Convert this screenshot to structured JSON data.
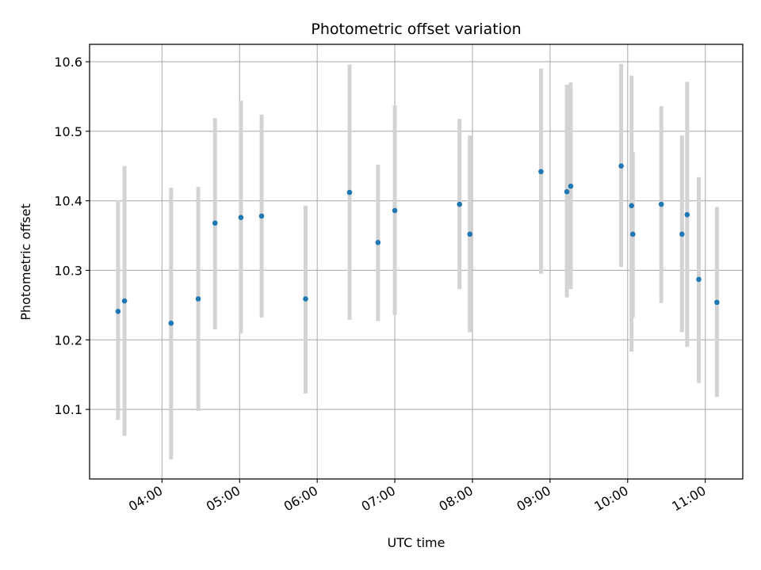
{
  "chart_data": {
    "type": "scatter",
    "title": "Photometric offset variation",
    "xlabel": "UTC time",
    "ylabel": "Photometric offset",
    "grid": true,
    "x_axis_type": "time",
    "xlim": [
      "03:04",
      "11:29"
    ],
    "ylim": [
      10.0,
      10.625
    ],
    "x_ticks": [
      "04:00",
      "05:00",
      "06:00",
      "07:00",
      "08:00",
      "09:00",
      "10:00",
      "11:00"
    ],
    "y_ticks": [
      10.1,
      10.2,
      10.3,
      10.4,
      10.5,
      10.6
    ],
    "marker_color": "#1f77b4",
    "errorbar_color": "#d3d3d3",
    "points": [
      {
        "x": "03:26",
        "y": 10.241,
        "ylo": 10.085,
        "yhi": 10.401
      },
      {
        "x": "03:31",
        "y": 10.256,
        "ylo": 10.062,
        "yhi": 10.45
      },
      {
        "x": "04:07",
        "y": 10.224,
        "ylo": 10.028,
        "yhi": 10.419
      },
      {
        "x": "04:28",
        "y": 10.259,
        "ylo": 10.098,
        "yhi": 10.42
      },
      {
        "x": "04:41",
        "y": 10.368,
        "ylo": 10.215,
        "yhi": 10.519
      },
      {
        "x": "05:01",
        "y": 10.376,
        "ylo": 10.209,
        "yhi": 10.544
      },
      {
        "x": "05:17",
        "y": 10.378,
        "ylo": 10.232,
        "yhi": 10.524
      },
      {
        "x": "05:51",
        "y": 10.259,
        "ylo": 10.123,
        "yhi": 10.393
      },
      {
        "x": "06:25",
        "y": 10.412,
        "ylo": 10.229,
        "yhi": 10.596
      },
      {
        "x": "06:47",
        "y": 10.34,
        "ylo": 10.227,
        "yhi": 10.452
      },
      {
        "x": "07:00",
        "y": 10.386,
        "ylo": 10.236,
        "yhi": 10.537
      },
      {
        "x": "07:50",
        "y": 10.395,
        "ylo": 10.273,
        "yhi": 10.518
      },
      {
        "x": "07:58",
        "y": 10.352,
        "ylo": 10.211,
        "yhi": 10.494
      },
      {
        "x": "08:53",
        "y": 10.442,
        "ylo": 10.295,
        "yhi": 10.59
      },
      {
        "x": "09:13",
        "y": 10.413,
        "ylo": 10.261,
        "yhi": 10.567
      },
      {
        "x": "09:16",
        "y": 10.421,
        "ylo": 10.273,
        "yhi": 10.57
      },
      {
        "x": "09:55",
        "y": 10.45,
        "ylo": 10.305,
        "yhi": 10.597
      },
      {
        "x": "10:03",
        "y": 10.393,
        "ylo": 10.183,
        "yhi": 10.58
      },
      {
        "x": "10:04",
        "y": 10.352,
        "ylo": 10.232,
        "yhi": 10.47
      },
      {
        "x": "10:26",
        "y": 10.395,
        "ylo": 10.253,
        "yhi": 10.536
      },
      {
        "x": "10:42",
        "y": 10.352,
        "ylo": 10.211,
        "yhi": 10.494
      },
      {
        "x": "10:46",
        "y": 10.38,
        "ylo": 10.19,
        "yhi": 10.571
      },
      {
        "x": "10:55",
        "y": 10.287,
        "ylo": 10.138,
        "yhi": 10.434
      },
      {
        "x": "11:09",
        "y": 10.254,
        "ylo": 10.118,
        "yhi": 10.391
      }
    ]
  }
}
